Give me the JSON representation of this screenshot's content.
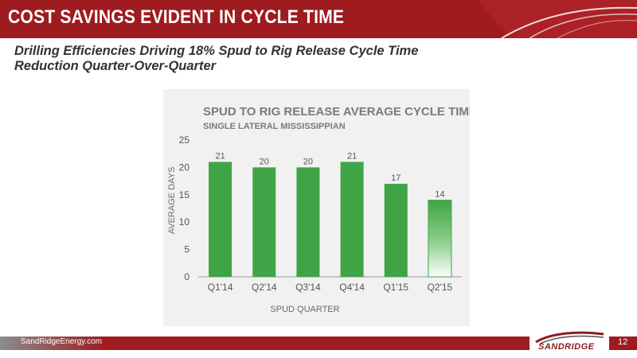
{
  "header": {
    "title": "COST SAVINGS EVIDENT IN CYCLE TIME"
  },
  "subtitle": {
    "line1": "Drilling Efficiencies Driving 18% Spud to Rig Release Cycle Time",
    "line2": "Reduction Quarter-Over-Quarter"
  },
  "footer": {
    "url": "SandRidgeEnergy.com",
    "page_number": "12",
    "logo_text": "SANDRIDGE"
  },
  "colors": {
    "header_red": "#9e1b20",
    "bar_green": "#3fa445",
    "footer_gray": "#8c8c8c"
  },
  "chart_data": {
    "type": "bar",
    "title": "SPUD TO RIG RELEASE AVERAGE CYCLE TIME",
    "subtitle": "SINGLE LATERAL MISSISSIPPIAN",
    "xlabel": "SPUD QUARTER",
    "ylabel": "AVERAGE DAYS",
    "categories": [
      "Q1'14",
      "Q2'14",
      "Q3'14",
      "Q4'14",
      "Q1'15",
      "Q2'15"
    ],
    "values": [
      21,
      20,
      20,
      21,
      17,
      14
    ],
    "data_labels": [
      "21",
      "20",
      "20",
      "21",
      "17",
      "14"
    ],
    "ylim": [
      0,
      25
    ],
    "yticks": [
      0,
      5,
      10,
      15,
      20,
      25
    ],
    "grid": false,
    "legend": "none",
    "last_bar_style": "gradient-fade"
  }
}
